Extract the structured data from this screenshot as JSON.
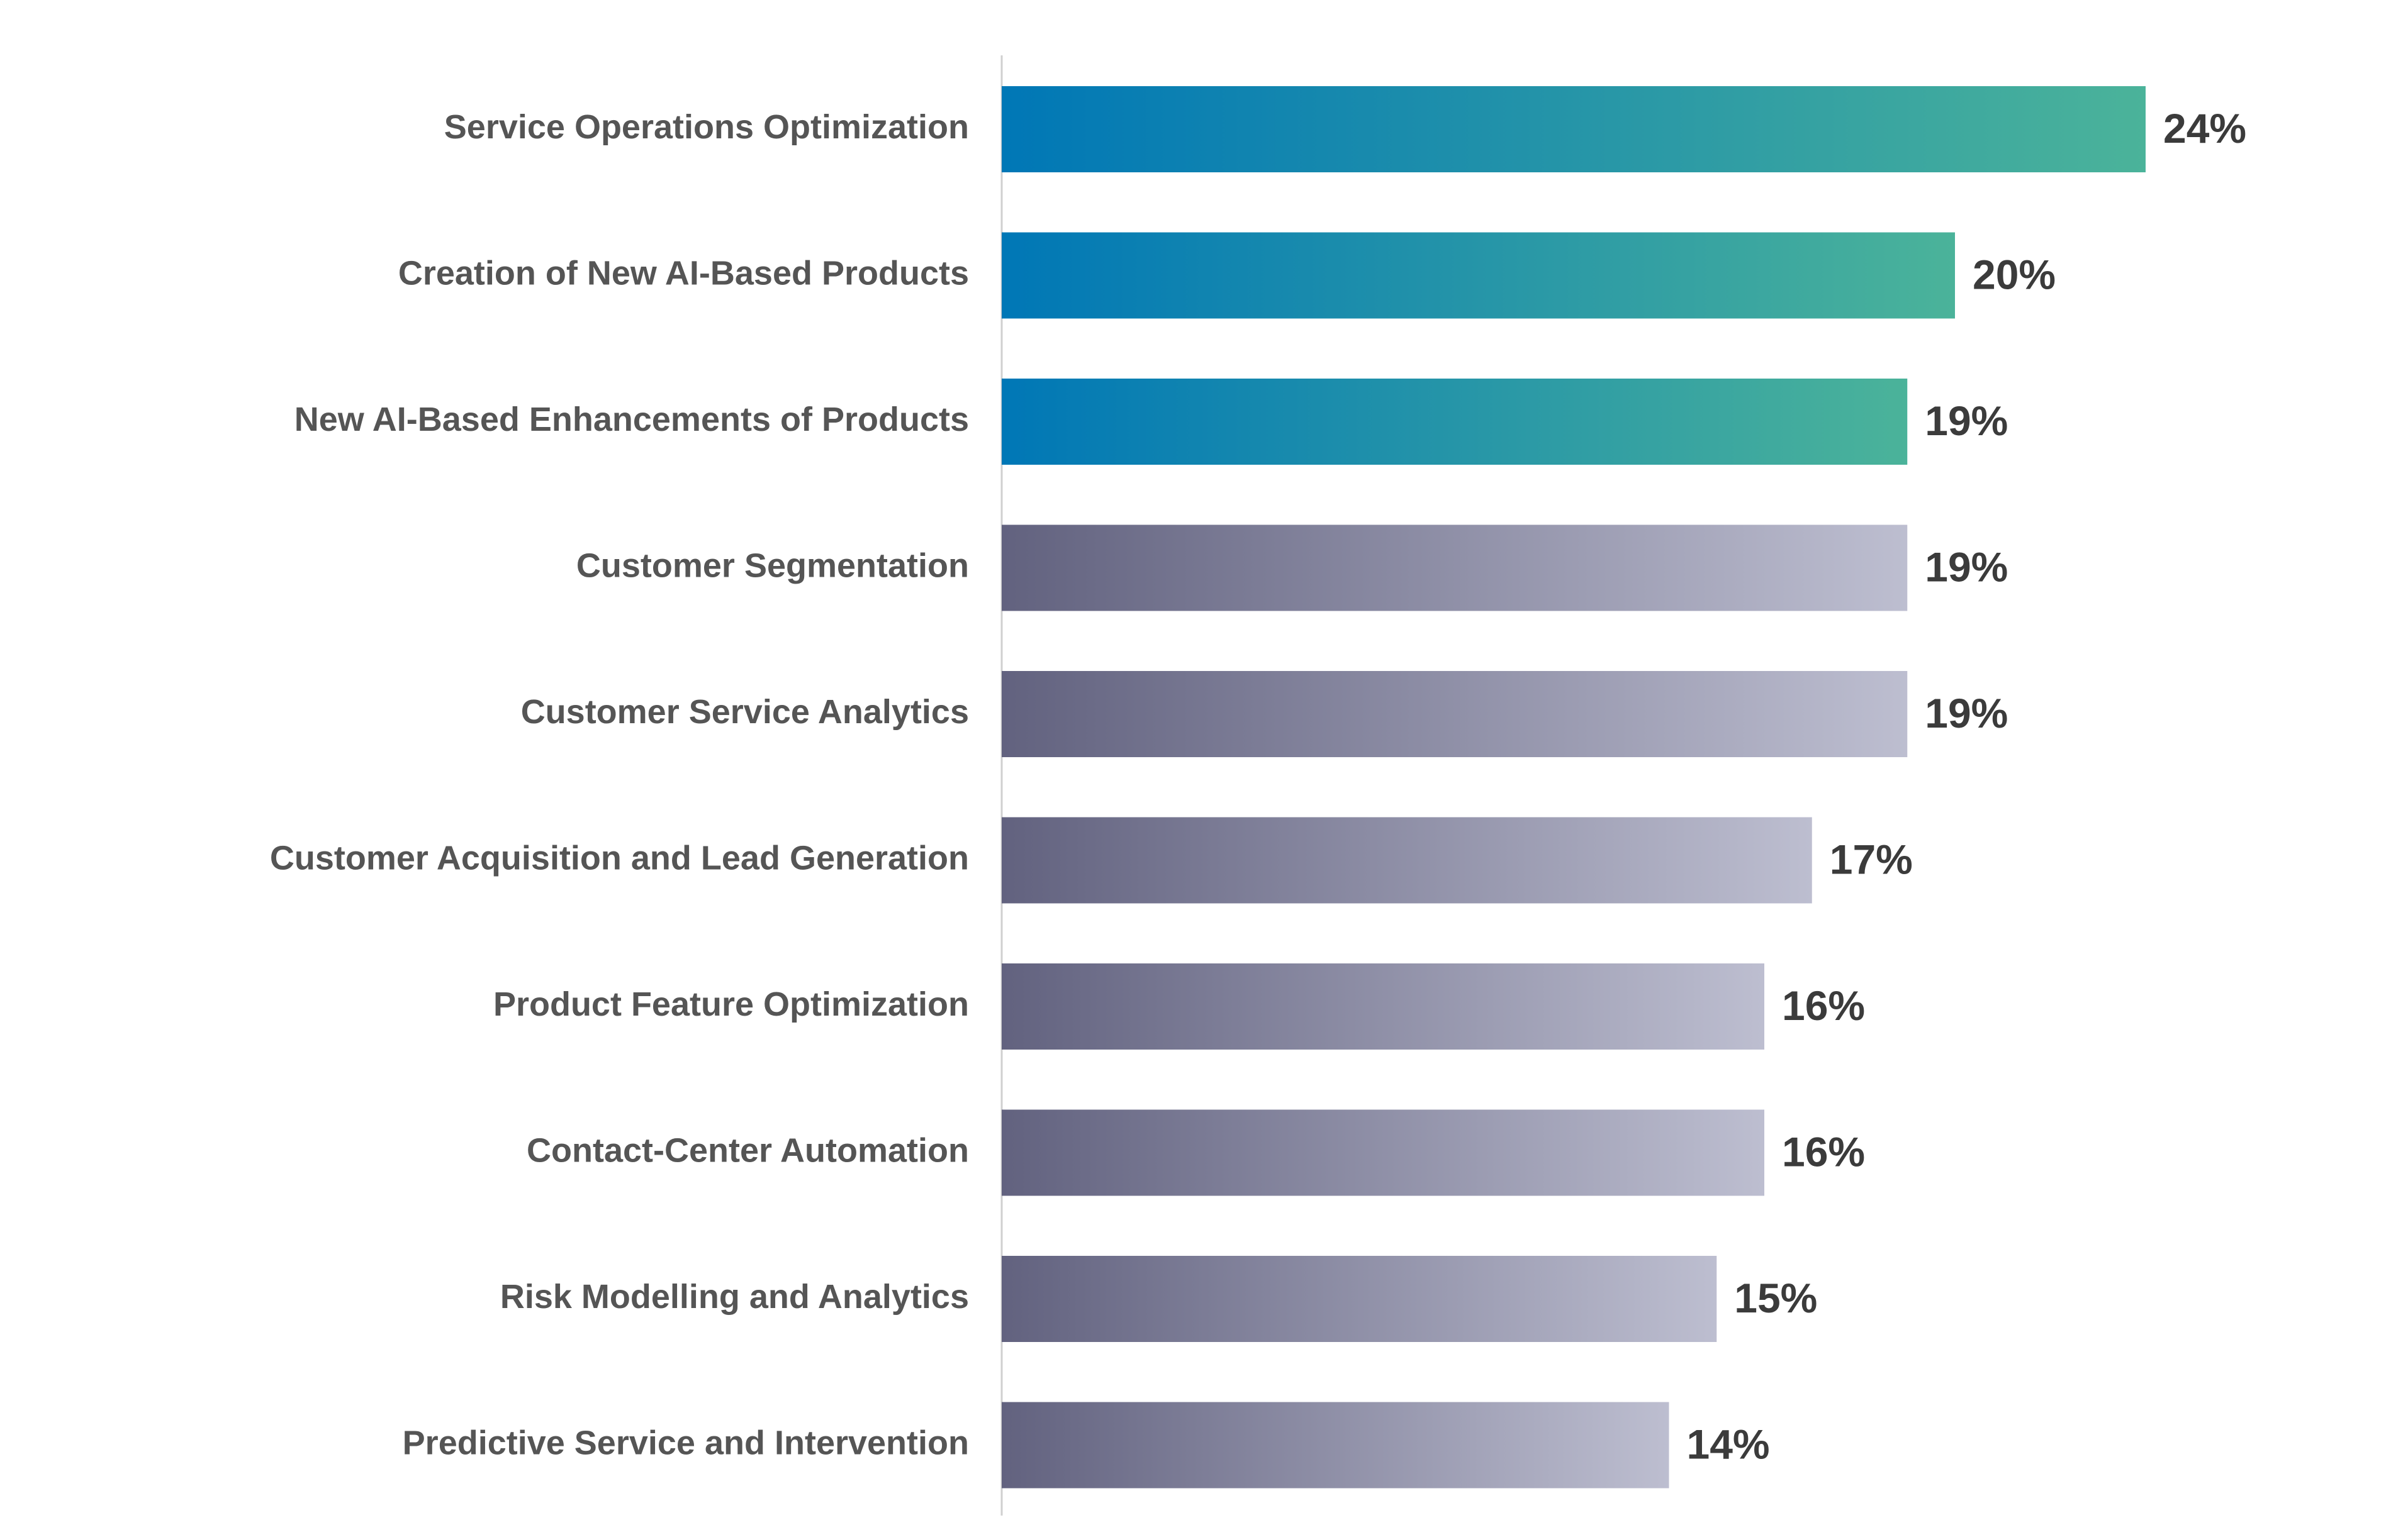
{
  "chart_data": {
    "type": "bar",
    "orientation": "horizontal",
    "categories": [
      "Service Operations Optimization",
      "Creation of New AI-Based Products",
      "New AI-Based Enhancements of Products",
      "Customer Segmentation",
      "Customer Service Analytics",
      "Customer Acquisition and Lead Generation",
      "Product Feature Optimization",
      "Contact-Center Automation",
      "Risk Modelling and Analytics",
      "Predictive Service and Intervention"
    ],
    "values": [
      24,
      20,
      19,
      19,
      19,
      17,
      16,
      16,
      15,
      14
    ],
    "value_labels": [
      "24%",
      "20%",
      "19%",
      "19%",
      "19%",
      "17%",
      "16%",
      "16%",
      "15%",
      "14%"
    ],
    "highlighted": [
      true,
      true,
      true,
      false,
      false,
      false,
      false,
      false,
      false,
      false
    ],
    "xlim": [
      0,
      24
    ],
    "title": "",
    "xlabel": "",
    "ylabel": "",
    "grid": false,
    "legend": "none",
    "colors": {
      "highlight_start": "#0077b6",
      "highlight_end": "#4bb39a",
      "muted_start": "#62627f",
      "muted_end": "#bdbed0",
      "axis_line": "#d0d0d0",
      "category_text": "#555555",
      "value_text": "#3b3b3b"
    }
  }
}
